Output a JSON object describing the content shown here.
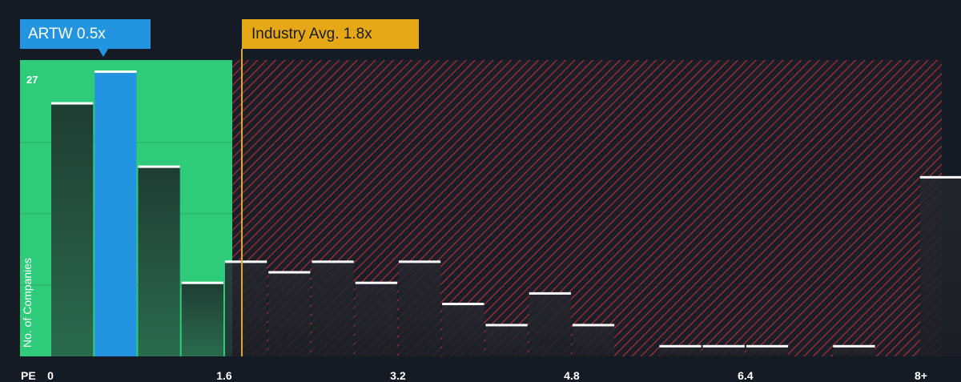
{
  "chart_data": {
    "type": "bar",
    "title": "",
    "xlabel": "PE",
    "ylabel": "No. of Companies",
    "x_tick_labels": [
      "0",
      "1.6",
      "3.2",
      "4.8",
      "6.4",
      "8+"
    ],
    "x_tick_values": [
      0,
      1.6,
      3.2,
      4.8,
      6.4,
      8.0
    ],
    "y_tick_labels": [
      "27"
    ],
    "ylim": [
      0,
      27
    ],
    "bin_width": 0.4,
    "bins": [
      {
        "start": 0.0,
        "value": 24
      },
      {
        "start": 0.4,
        "value": 27,
        "highlight": true
      },
      {
        "start": 0.8,
        "value": 18
      },
      {
        "start": 1.2,
        "value": 7
      },
      {
        "start": 1.6,
        "value": 9
      },
      {
        "start": 2.0,
        "value": 8
      },
      {
        "start": 2.4,
        "value": 9
      },
      {
        "start": 2.8,
        "value": 7
      },
      {
        "start": 3.2,
        "value": 9
      },
      {
        "start": 3.6,
        "value": 5
      },
      {
        "start": 4.0,
        "value": 3
      },
      {
        "start": 4.4,
        "value": 6
      },
      {
        "start": 4.8,
        "value": 3
      },
      {
        "start": 5.2,
        "value": 0
      },
      {
        "start": 5.6,
        "value": 1
      },
      {
        "start": 6.0,
        "value": 1
      },
      {
        "start": 6.4,
        "value": 1
      },
      {
        "start": 6.8,
        "value": 0
      },
      {
        "start": 7.2,
        "value": 1
      },
      {
        "start": 7.6,
        "value": 0
      },
      {
        "start": 8.0,
        "value": 17
      }
    ],
    "company": {
      "ticker": "ARTW",
      "pe": 0.5,
      "label": "ARTW 0.5x"
    },
    "industry_avg": {
      "pe": 1.8,
      "label": "Industry Avg. 1.8x"
    },
    "fair_range_end": 1.68,
    "grid": true,
    "colors": {
      "background": "#151b24",
      "fair_zone": "#2ecc7a",
      "overvalued_hatch": "#c0392b",
      "bar": "#1a3a2e",
      "bar_over": "#1e2228",
      "bar_highlight": "#2394e0",
      "bar_cap": "#ffffff",
      "industry_line": "#e6a817"
    }
  }
}
